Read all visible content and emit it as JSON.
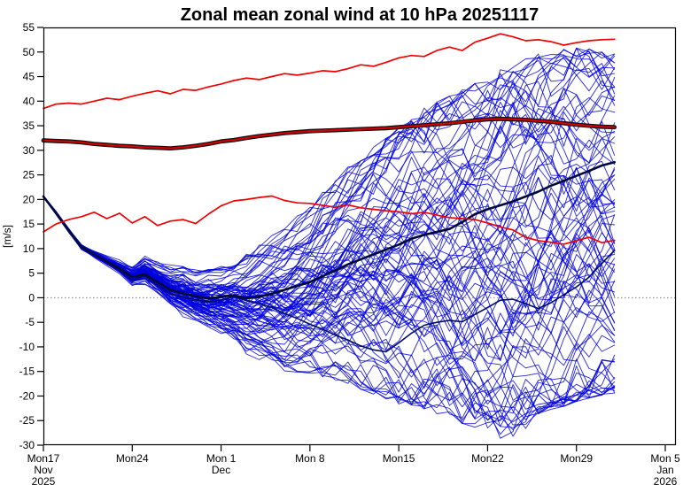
{
  "title": "Zonal mean zonal wind at 10 hPa 20251117",
  "y_axis_label": "[m/s]",
  "chart_data": {
    "type": "line",
    "title": "Zonal mean zonal wind at 10 hPa 20251117",
    "ylabel": "[m/s]",
    "ylim": [
      -30,
      55
    ],
    "yticks": [
      -30,
      -25,
      -20,
      -15,
      -10,
      -5,
      0,
      5,
      10,
      15,
      20,
      25,
      30,
      35,
      40,
      45,
      50,
      55
    ],
    "grid": false,
    "zero_reference_line": 0,
    "xlim_days": [
      0,
      49
    ],
    "xticks": [
      {
        "day": 0,
        "label": "Mon17",
        "sublabels": [
          "Nov",
          "2025"
        ]
      },
      {
        "day": 7,
        "label": "Mon24",
        "sublabels": []
      },
      {
        "day": 14,
        "label": "Mon 1",
        "sublabels": [
          "Dec"
        ]
      },
      {
        "day": 21,
        "label": "Mon 8",
        "sublabels": []
      },
      {
        "day": 28,
        "label": "Mon15",
        "sublabels": []
      },
      {
        "day": 35,
        "label": "Mon22",
        "sublabels": []
      },
      {
        "day": 42,
        "label": "Mon29",
        "sublabels": []
      },
      {
        "day": 49,
        "label": "Mon 5",
        "sublabels": [
          "Jan",
          "2026"
        ]
      }
    ],
    "forecast_length_days": 45,
    "days_step": 1,
    "colors": {
      "ensemble_member": "#0000dd",
      "ensemble_mean": "#000a38",
      "control_member": "#000d66",
      "climatology_core": "#d40000",
      "climatology_outline": "#111111",
      "climatology_percentile": "#f00000",
      "zero_line": "#8c8c8c",
      "axis": "#000000"
    },
    "series": [
      {
        "name": "climatology_mean",
        "color": "#d40000",
        "outline": "#111111",
        "width": 2.2,
        "outline_width": 4.8,
        "values": [
          32.0,
          31.9,
          31.8,
          31.6,
          31.3,
          31.1,
          30.9,
          30.8,
          30.6,
          30.5,
          30.4,
          30.6,
          30.9,
          31.3,
          31.8,
          32.1,
          32.5,
          32.9,
          33.2,
          33.5,
          33.7,
          33.9,
          34.0,
          34.1,
          34.2,
          34.3,
          34.4,
          34.5,
          34.7,
          34.9,
          35.1,
          35.3,
          35.5,
          35.8,
          36.1,
          36.3,
          36.4,
          36.3,
          36.2,
          36.0,
          35.8,
          35.5,
          35.2,
          35.0,
          34.8,
          34.7
        ]
      },
      {
        "name": "climatology_upper_percentile",
        "color": "#f00000",
        "width": 1.7,
        "values": [
          38.5,
          39.4,
          39.6,
          39.4,
          40.0,
          40.6,
          40.3,
          41.0,
          41.6,
          42.1,
          41.5,
          42.4,
          42.2,
          42.9,
          43.5,
          44.2,
          44.7,
          44.4,
          45.0,
          45.6,
          45.3,
          45.7,
          46.2,
          46.0,
          46.6,
          47.4,
          47.1,
          47.9,
          48.8,
          49.3,
          49.1,
          50.3,
          51.0,
          50.3,
          52.0,
          52.8,
          53.7,
          53.1,
          52.3,
          52.5,
          52.1,
          51.4,
          51.9,
          52.3,
          52.5,
          52.6
        ]
      },
      {
        "name": "climatology_lower_percentile",
        "color": "#f00000",
        "width": 1.7,
        "values": [
          13.4,
          15.0,
          15.9,
          16.5,
          17.4,
          16.1,
          17.2,
          15.2,
          16.5,
          14.7,
          15.6,
          15.9,
          15.1,
          17.0,
          18.7,
          19.7,
          20.0,
          20.4,
          20.7,
          19.8,
          19.3,
          19.2,
          18.8,
          18.4,
          18.9,
          18.3,
          18.0,
          17.7,
          17.5,
          17.1,
          17.4,
          16.8,
          16.3,
          16.1,
          15.9,
          15.2,
          14.4,
          13.8,
          12.3,
          11.6,
          11.3,
          10.9,
          11.6,
          12.3,
          11.2,
          11.7
        ]
      },
      {
        "name": "ensemble_mean",
        "color": "#000a38",
        "width": 2.6,
        "values": [
          20.6,
          17.2,
          13.6,
          10.3,
          8.8,
          7.4,
          6.0,
          4.2,
          4.8,
          3.2,
          1.6,
          0.9,
          0.3,
          -0.2,
          0.2,
          0.5,
          -0.1,
          0.2,
          0.8,
          1.6,
          2.4,
          3.2,
          4.4,
          5.6,
          6.8,
          7.8,
          8.8,
          9.8,
          10.8,
          12.0,
          12.8,
          13.4,
          14.0,
          15.4,
          17.0,
          18.0,
          18.8,
          19.6,
          20.6,
          21.6,
          22.8,
          23.8,
          24.8,
          25.8,
          26.9,
          27.6
        ]
      },
      {
        "name": "control_member",
        "color": "#000d66",
        "width": 1.6,
        "values": [
          20.6,
          17.3,
          13.8,
          10.5,
          9.0,
          7.2,
          5.6,
          3.6,
          4.4,
          2.6,
          0.8,
          0.2,
          -0.4,
          -0.8,
          -0.5,
          0.3,
          -0.6,
          -1.2,
          -2.0,
          -3.2,
          -4.2,
          -5.4,
          -6.4,
          -7.6,
          -8.6,
          -9.8,
          -10.6,
          -11.0,
          -9.2,
          -7.2,
          -5.6,
          -5.0,
          -4.6,
          -4.9,
          -3.4,
          -2.0,
          -0.5,
          -0.3,
          -1.2,
          -2.2,
          -1.0,
          0.6,
          2.2,
          4.2,
          7.0,
          9.6
        ]
      }
    ],
    "ensemble_members": {
      "count": 90,
      "color": "#0000dd",
      "line_width": 0.9,
      "seed": 20251117,
      "envelope_min": [
        20.3,
        16.8,
        13.0,
        9.6,
        8.0,
        6.4,
        4.6,
        2.2,
        2.6,
        0.6,
        -2.0,
        -3.8,
        -5.0,
        -6.5,
        -8.0,
        -9.0,
        -11.0,
        -12.0,
        -13.0,
        -14.5,
        -15.0,
        -15.5,
        -16.0,
        -17.0,
        -17.2,
        -18.0,
        -19.0,
        -20.0,
        -21.0,
        -21.2,
        -22.0,
        -23.0,
        -24.0,
        -25.0,
        -26.0,
        -27.0,
        -28.0,
        -27.6,
        -26.0,
        -24.0,
        -22.5,
        -21.5,
        -20.5,
        -19.8,
        -19.2,
        -18.8
      ],
      "envelope_max": [
        20.9,
        17.7,
        14.3,
        11.0,
        9.7,
        8.6,
        7.6,
        6.6,
        8.6,
        7.2,
        6.2,
        6.6,
        5.2,
        5.8,
        6.6,
        7.4,
        8.4,
        10.2,
        12.2,
        14.0,
        16.0,
        18.2,
        21.0,
        23.8,
        26.0,
        28.0,
        30.0,
        32.0,
        34.0,
        36.0,
        38.0,
        39.2,
        40.4,
        42.0,
        43.0,
        44.2,
        45.8,
        47.0,
        48.0,
        49.0,
        49.8,
        50.2,
        50.2,
        50.0,
        49.4,
        49.0
      ]
    }
  }
}
